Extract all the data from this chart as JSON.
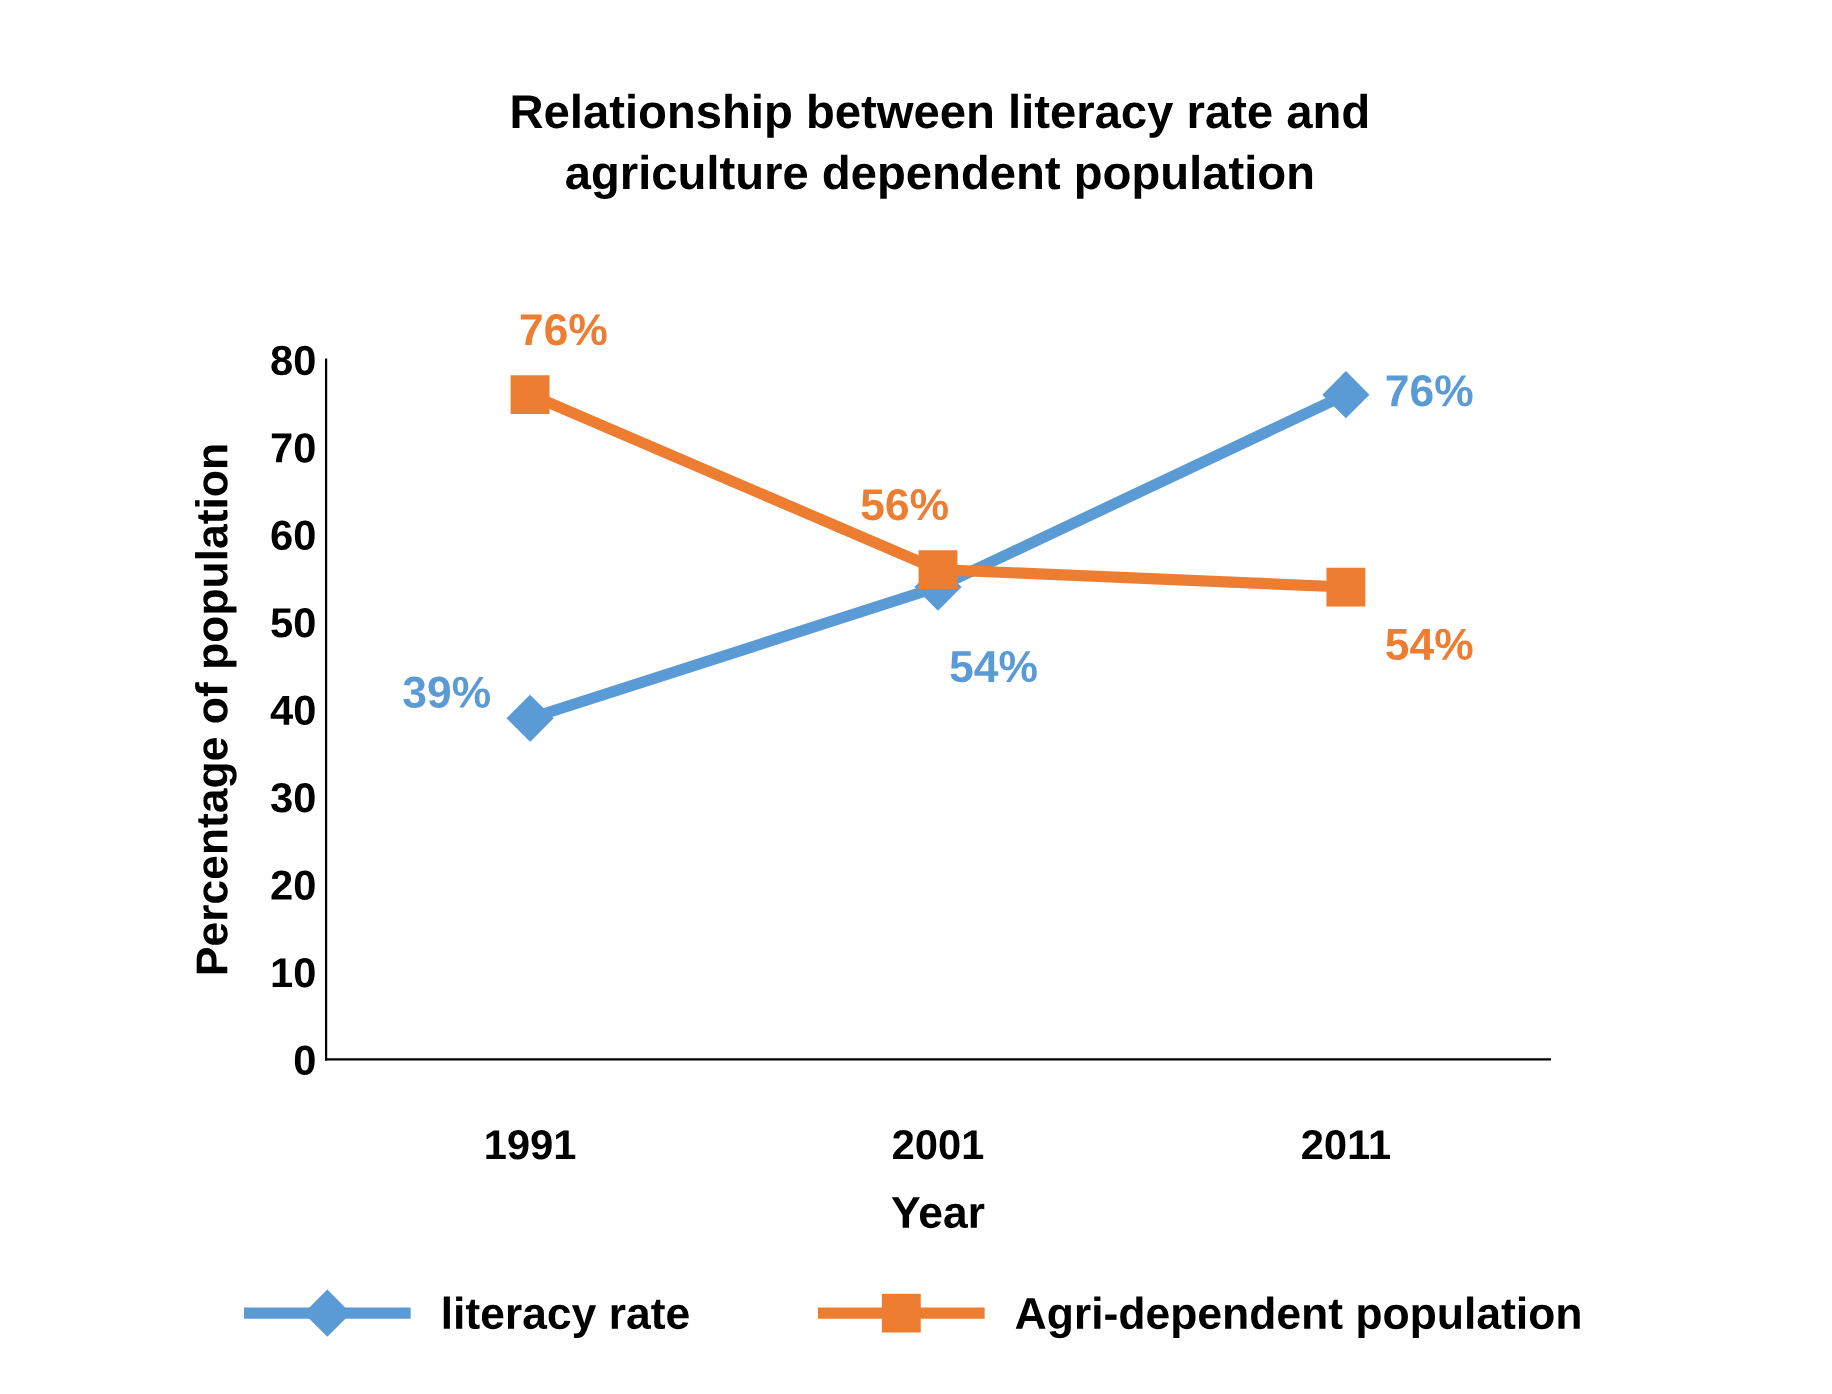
{
  "chart_data": {
    "type": "line",
    "title": "Relationship between literacy rate and\nagriculture dependent population",
    "xlabel": "Year",
    "ylabel": "Percentage of population",
    "categories": [
      "1991",
      "2001",
      "2011"
    ],
    "series": [
      {
        "name": "literacy rate",
        "color": "#5b9bd5",
        "marker": "diamond",
        "values": [
          39,
          54,
          76
        ],
        "value_labels": [
          "39%",
          "54%",
          "76%"
        ]
      },
      {
        "name": "Agri-dependent population",
        "color": "#ed7d31",
        "marker": "square",
        "values": [
          76,
          56,
          54
        ],
        "value_labels": [
          "76%",
          "56%",
          "54%"
        ]
      }
    ],
    "ylim": [
      0,
      80
    ],
    "yticks": [
      0,
      10,
      20,
      30,
      40,
      50,
      60,
      70,
      80
    ],
    "grid": false,
    "legend": "bottom",
    "line_style": "solid"
  }
}
